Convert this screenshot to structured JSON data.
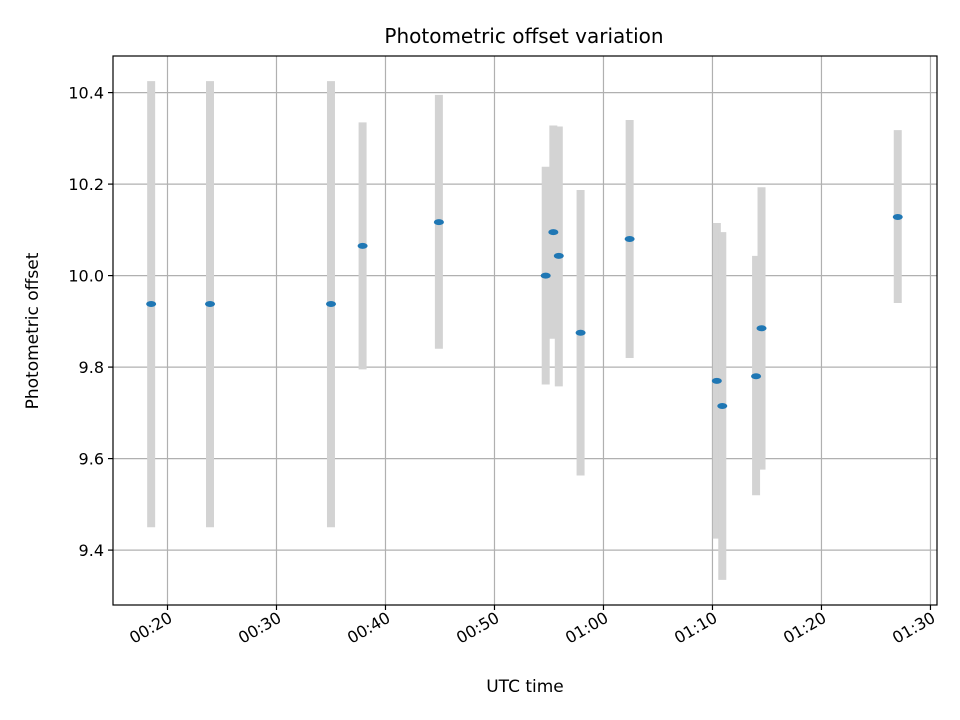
{
  "chart_data": {
    "type": "scatter",
    "title": "Photometric offset variation",
    "xlabel": "UTC time",
    "ylabel": "Photometric offset",
    "x_unit": "minutes",
    "xlim": [
      15.0,
      90.6
    ],
    "ylim": [
      9.28,
      10.48
    ],
    "grid": true,
    "x_ticks": [
      {
        "value": 20,
        "label": "00:20"
      },
      {
        "value": 30,
        "label": "00:30"
      },
      {
        "value": 40,
        "label": "00:40"
      },
      {
        "value": 50,
        "label": "00:50"
      },
      {
        "value": 60,
        "label": "01:00"
      },
      {
        "value": 70,
        "label": "01:10"
      },
      {
        "value": 80,
        "label": "01:20"
      },
      {
        "value": 90,
        "label": "01:30"
      }
    ],
    "y_ticks": [
      {
        "value": 9.4,
        "label": "9.4"
      },
      {
        "value": 9.6,
        "label": "9.6"
      },
      {
        "value": 9.8,
        "label": "9.8"
      },
      {
        "value": 10.0,
        "label": "10.0"
      },
      {
        "value": 10.2,
        "label": "10.2"
      },
      {
        "value": 10.4,
        "label": "10.4"
      }
    ],
    "colors": {
      "marker": "#1f77b4",
      "errorbar": "#d3d3d3",
      "grid": "#b0b0b0"
    },
    "points": [
      {
        "x": 18.5,
        "y": 9.938,
        "yerr_low": 9.45,
        "yerr_high": 10.425
      },
      {
        "x": 23.9,
        "y": 9.938,
        "yerr_low": 9.45,
        "yerr_high": 10.425
      },
      {
        "x": 35.0,
        "y": 9.938,
        "yerr_low": 9.45,
        "yerr_high": 10.425
      },
      {
        "x": 37.9,
        "y": 10.065,
        "yerr_low": 9.795,
        "yerr_high": 10.335
      },
      {
        "x": 44.9,
        "y": 10.117,
        "yerr_low": 9.84,
        "yerr_high": 10.395
      },
      {
        "x": 54.7,
        "y": 10.0,
        "yerr_low": 9.762,
        "yerr_high": 10.238
      },
      {
        "x": 55.4,
        "y": 10.095,
        "yerr_low": 9.862,
        "yerr_high": 10.328
      },
      {
        "x": 55.9,
        "y": 10.043,
        "yerr_low": 9.758,
        "yerr_high": 10.326
      },
      {
        "x": 57.9,
        "y": 9.875,
        "yerr_low": 9.563,
        "yerr_high": 10.187
      },
      {
        "x": 62.4,
        "y": 10.08,
        "yerr_low": 9.82,
        "yerr_high": 10.34
      },
      {
        "x": 70.4,
        "y": 9.77,
        "yerr_low": 9.425,
        "yerr_high": 10.115
      },
      {
        "x": 70.9,
        "y": 9.715,
        "yerr_low": 9.335,
        "yerr_high": 10.095
      },
      {
        "x": 74.0,
        "y": 9.78,
        "yerr_low": 9.52,
        "yerr_high": 10.043
      },
      {
        "x": 74.5,
        "y": 9.885,
        "yerr_low": 9.576,
        "yerr_high": 10.193
      },
      {
        "x": 87.0,
        "y": 10.128,
        "yerr_low": 9.94,
        "yerr_high": 10.318
      }
    ]
  }
}
